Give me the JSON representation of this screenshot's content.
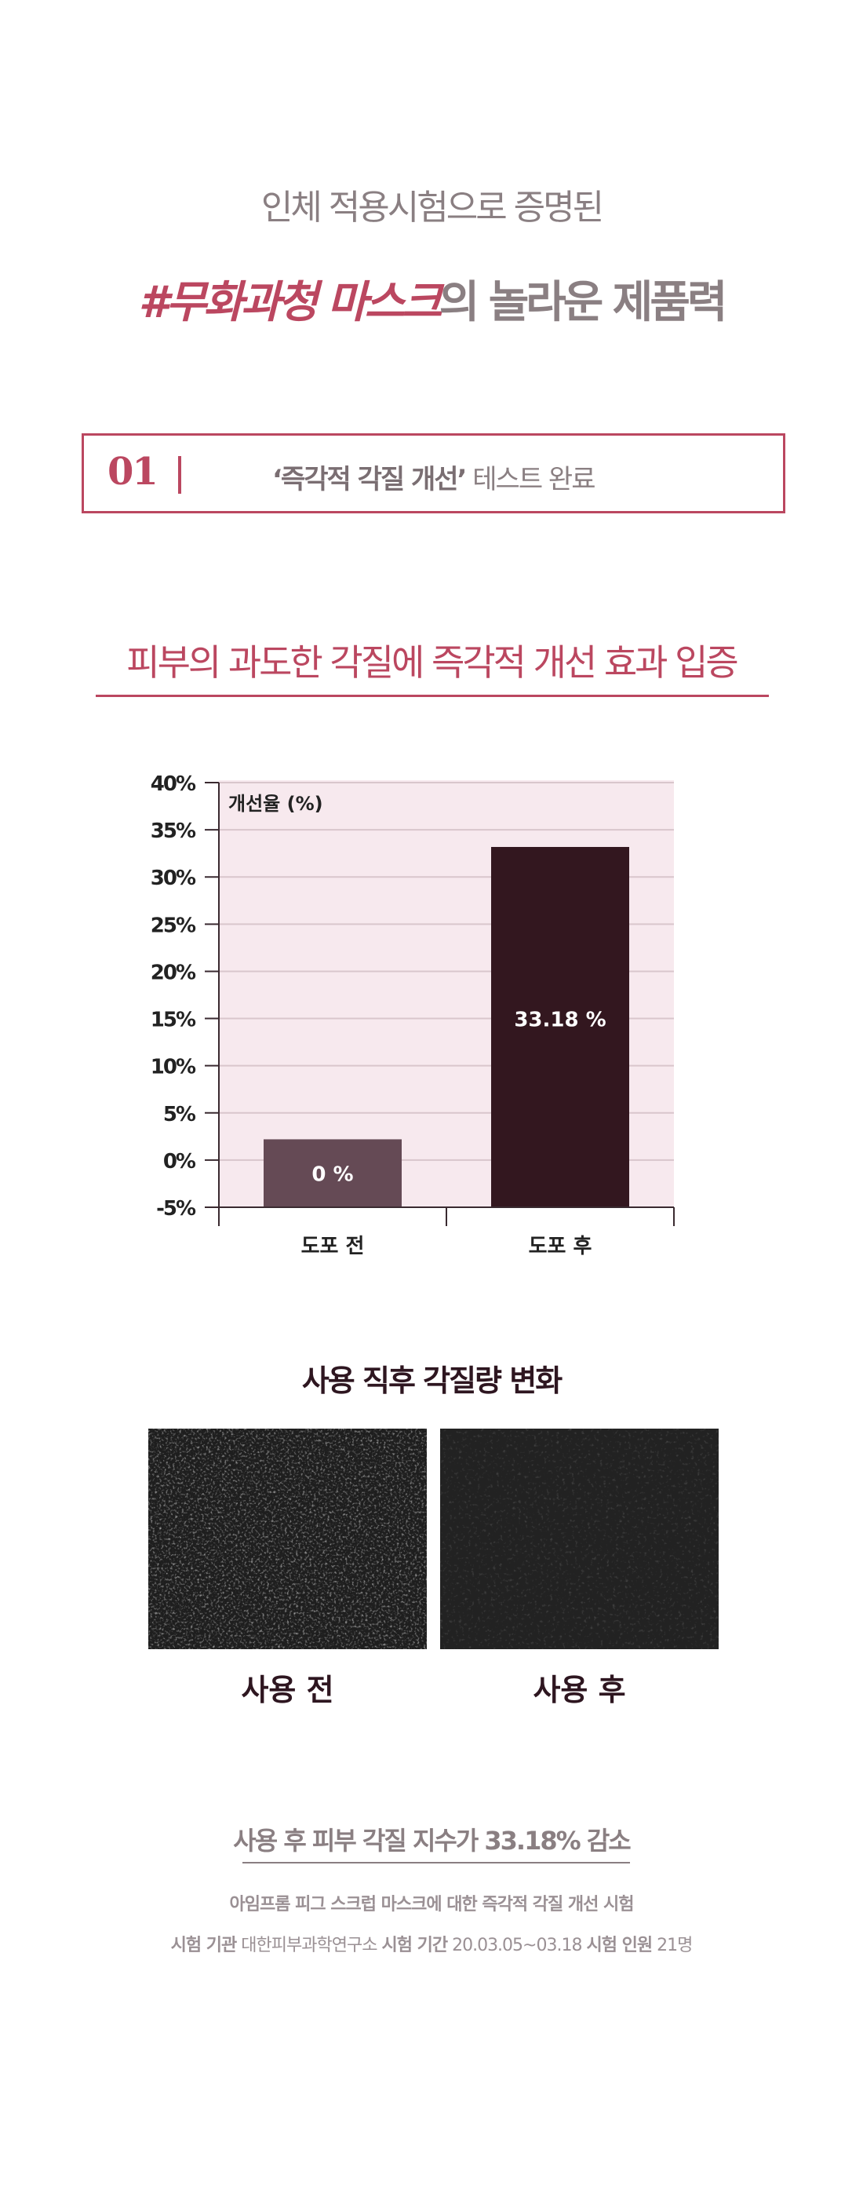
{
  "header": {
    "subtitle": "인체 적용시험으로 증명된",
    "title_highlight": "#무화과청 마스크",
    "title_rest": "의 놀라운 제품력"
  },
  "test_box": {
    "number": "01",
    "name": "‘즉각적 각질 개선’",
    "status": "테스트 완료"
  },
  "headline": "피부의 과도한 각질에 즉각적 개선 효과 입증",
  "chart_data": {
    "type": "bar",
    "ylabel": "개선율 (%)",
    "categories": [
      "도포 전",
      "도포 후"
    ],
    "values": [
      0,
      33.18
    ],
    "data_labels": [
      "0 %",
      "33.18 %"
    ],
    "ylim": [
      -5,
      40
    ],
    "yticks": [
      "40%",
      "35%",
      "30%",
      "25%",
      "20%",
      "15%",
      "10%",
      "5%",
      "0%",
      "-5%"
    ],
    "grid": true,
    "colors": {
      "bar_before": "#654a55",
      "bar_after": "#33171f",
      "plot_bg": "#f7e9ee",
      "grid": "#d9c6cc"
    }
  },
  "photos": {
    "title": "사용 직후 각질량 변화",
    "before_label": "사용 전",
    "after_label": "사용 후"
  },
  "footer": {
    "result": "사용 후 피부 각질 지수가 33.18% 감소",
    "test_name": "아임프롬 피그 스크럽 마스크에 대한 즉각적 각질 개선 시험",
    "org_label": "시험 기관",
    "org_value": "대한피부과학연구소",
    "period_label": "시험 기간",
    "period_value": "20.03.05~03.18",
    "people_label": "시험 인원",
    "people_value": "21명"
  },
  "colors": {
    "accent": "#bb4760",
    "gray_text": "#8a7f82",
    "dark_text": "#2e1620"
  }
}
